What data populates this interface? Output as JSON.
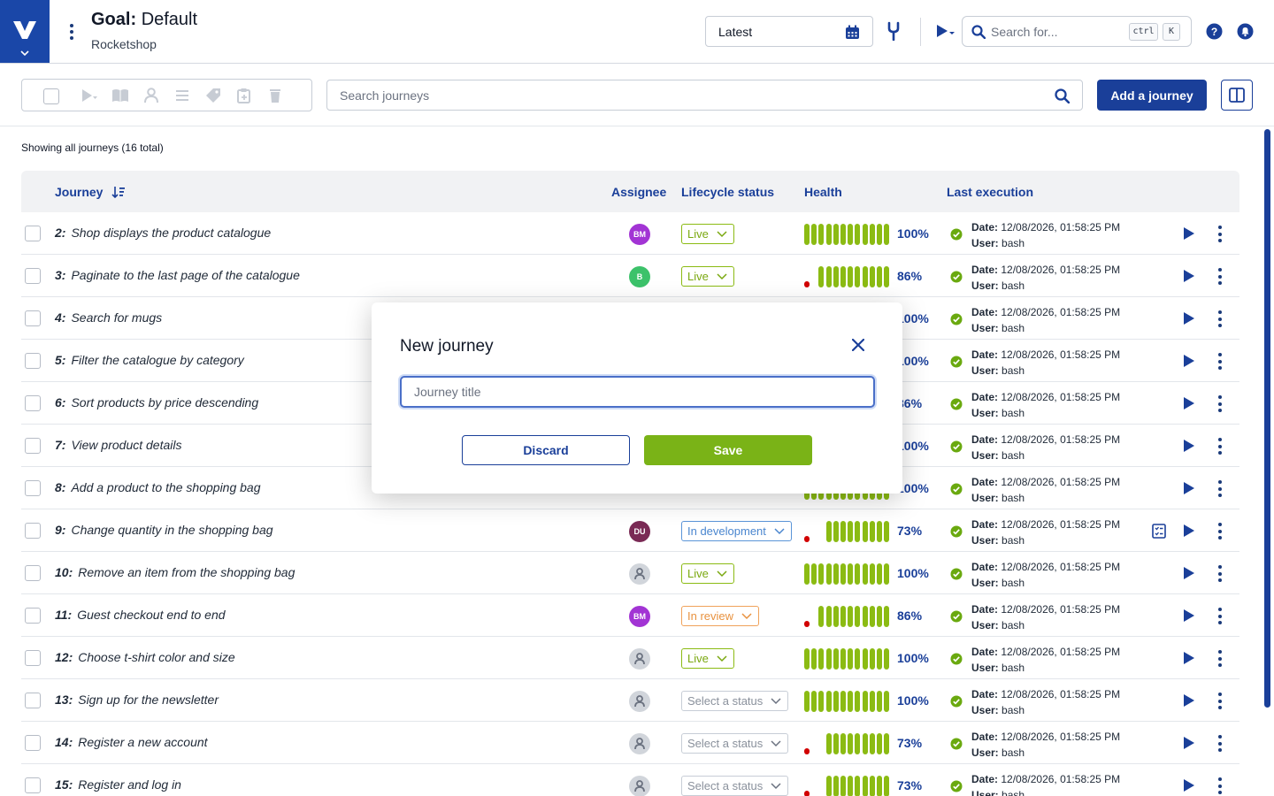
{
  "header": {
    "goal_label": "Goal:",
    "goal_name": "Default",
    "project": "Rocketshop",
    "date_select_value": "Latest",
    "search_placeholder": "Search for...",
    "kbd_ctrl": "ctrl",
    "kbd_k": "K"
  },
  "toolbar": {
    "search_placeholder": "Search journeys",
    "add_label": "Add a journey"
  },
  "summary": "Showing all journeys (16 total)",
  "columns": {
    "journey": "Journey",
    "assignee": "Assignee",
    "lifecycle": "Lifecycle status",
    "health": "Health",
    "last_execution": "Last execution"
  },
  "exec_labels": {
    "date": "Date:",
    "user": "User:"
  },
  "rows": [
    {
      "num": "2:",
      "title": "Shop displays the product catalogue",
      "assignee": "BM",
      "avatar_color": "#a234d4",
      "status": "Live",
      "status_kind": "live",
      "health": "100%",
      "health_value": 1.0,
      "date": "12/08/2026, 01:58:25 PM",
      "user": "bash",
      "checklist": false
    },
    {
      "num": "3:",
      "title": "Paginate to the last page of the catalogue",
      "assignee": "B",
      "avatar_color": "#3cc26a",
      "status": "Live",
      "status_kind": "live",
      "health": "86%",
      "health_value": 0.86,
      "date": "12/08/2026, 01:58:25 PM",
      "user": "bash",
      "checklist": false
    },
    {
      "num": "4:",
      "title": "Search for mugs",
      "assignee": "",
      "avatar_color": "",
      "status": "",
      "status_kind": "hidden",
      "health": "100%",
      "health_value": 1.0,
      "date": "12/08/2026, 01:58:25 PM",
      "user": "bash",
      "checklist": false
    },
    {
      "num": "5:",
      "title": "Filter the catalogue by category",
      "assignee": "",
      "avatar_color": "",
      "status": "",
      "status_kind": "hidden",
      "health": "100%",
      "health_value": 1.0,
      "date": "12/08/2026, 01:58:25 PM",
      "user": "bash",
      "checklist": false
    },
    {
      "num": "6:",
      "title": "Sort products by price descending",
      "assignee": "",
      "avatar_color": "",
      "status": "",
      "status_kind": "hidden",
      "health": "86%",
      "health_value": 0.86,
      "date": "12/08/2026, 01:58:25 PM",
      "user": "bash",
      "checklist": false
    },
    {
      "num": "7:",
      "title": "View product details",
      "assignee": "",
      "avatar_color": "",
      "status": "",
      "status_kind": "hidden",
      "health": "100%",
      "health_value": 1.0,
      "date": "12/08/2026, 01:58:25 PM",
      "user": "bash",
      "checklist": false
    },
    {
      "num": "8:",
      "title": "Add a product to the shopping bag",
      "assignee": "",
      "avatar_color": "",
      "status": "",
      "status_kind": "hidden",
      "health": "100%",
      "health_value": 1.0,
      "date": "12/08/2026, 01:58:25 PM",
      "user": "bash",
      "checklist": false
    },
    {
      "num": "9:",
      "title": "Change quantity in the shopping bag",
      "assignee": "DU",
      "avatar_color": "#7a2a55",
      "status": "In development",
      "status_kind": "dev",
      "health": "73%",
      "health_value": 0.73,
      "date": "12/08/2026, 01:58:25 PM",
      "user": "bash",
      "checklist": true
    },
    {
      "num": "10:",
      "title": "Remove an item from the shopping bag",
      "assignee": "",
      "avatar_color": "",
      "status": "Live",
      "status_kind": "live",
      "health": "100%",
      "health_value": 1.0,
      "date": "12/08/2026, 01:58:25 PM",
      "user": "bash",
      "checklist": false
    },
    {
      "num": "11:",
      "title": "Guest checkout end to end",
      "assignee": "BM",
      "avatar_color": "#a234d4",
      "status": "In review",
      "status_kind": "review",
      "health": "86%",
      "health_value": 0.86,
      "date": "12/08/2026, 01:58:25 PM",
      "user": "bash",
      "checklist": false
    },
    {
      "num": "12:",
      "title": "Choose t-shirt color and size",
      "assignee": "",
      "avatar_color": "",
      "status": "Live",
      "status_kind": "live",
      "health": "100%",
      "health_value": 1.0,
      "date": "12/08/2026, 01:58:25 PM",
      "user": "bash",
      "checklist": false
    },
    {
      "num": "13:",
      "title": "Sign up for the newsletter",
      "assignee": "",
      "avatar_color": "",
      "status": "Select a status",
      "status_kind": "none",
      "health": "100%",
      "health_value": 1.0,
      "date": "12/08/2026, 01:58:25 PM",
      "user": "bash",
      "checklist": false
    },
    {
      "num": "14:",
      "title": "Register a new account",
      "assignee": "",
      "avatar_color": "",
      "status": "Select a status",
      "status_kind": "none",
      "health": "73%",
      "health_value": 0.73,
      "date": "12/08/2026, 01:58:25 PM",
      "user": "bash",
      "checklist": false
    },
    {
      "num": "15:",
      "title": "Register and log in",
      "assignee": "",
      "avatar_color": "",
      "status": "Select a status",
      "status_kind": "none",
      "health": "73%",
      "health_value": 0.73,
      "date": "12/08/2026, 01:58:25 PM",
      "user": "bash",
      "checklist": false
    }
  ],
  "modal": {
    "title": "New journey",
    "input_placeholder": "Journey title",
    "discard_label": "Discard",
    "save_label": "Save"
  },
  "colors": {
    "brand": "#1a3f99",
    "health_good": "#8bbb13",
    "health_bad": "#d10000",
    "save": "#7ab317"
  }
}
